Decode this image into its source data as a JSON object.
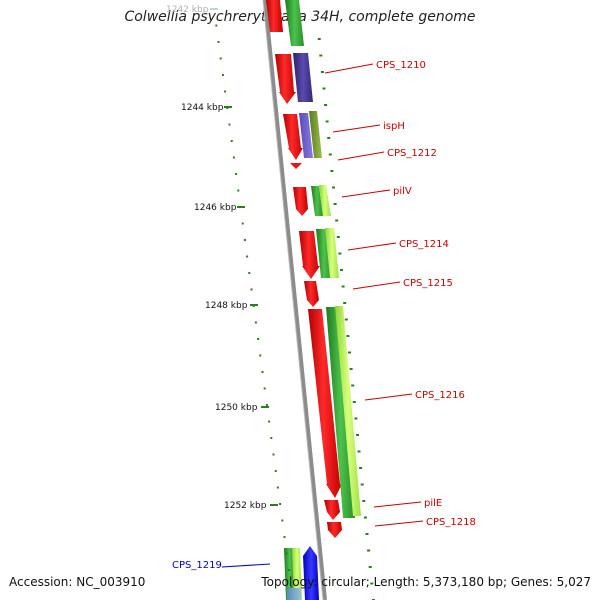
{
  "title": "Colwellia psychrerythraea 34H, complete genome",
  "footer": {
    "accession": "Accession: NC_003910",
    "summary": "Topology: circular; Length: 5,373,180 bp; Genes: 5,027"
  },
  "colors": {
    "backbone": "#8c8c8c",
    "gene_forward": "#e8141c",
    "gene_cds_green": "#3aa33a",
    "gene_cds_lime": "#b5f05a",
    "gene_cds_purple": "#4a3a8c",
    "tick": "#2f7d1e",
    "label_red": "#cc0000",
    "label_blue": "#0000cc"
  },
  "kbp_labels": [
    {
      "text": "1242 kbp",
      "faded": true
    },
    {
      "text": "1244 kbp"
    },
    {
      "text": "1246 kbp"
    },
    {
      "text": "1248 kbp"
    },
    {
      "text": "1250 kbp"
    },
    {
      "text": "1252 kbp"
    }
  ],
  "gene_labels": [
    {
      "text": "CPS_1210",
      "color": "red"
    },
    {
      "text": "ispH",
      "color": "red"
    },
    {
      "text": "CPS_1212",
      "color": "red"
    },
    {
      "text": "pilV",
      "color": "red"
    },
    {
      "text": "CPS_1214",
      "color": "red"
    },
    {
      "text": "CPS_1215",
      "color": "red"
    },
    {
      "text": "CPS_1216",
      "color": "red"
    },
    {
      "text": "pilE",
      "color": "red"
    },
    {
      "text": "CPS_1218",
      "color": "red"
    },
    {
      "text": "CPS_1219",
      "color": "blue"
    }
  ]
}
